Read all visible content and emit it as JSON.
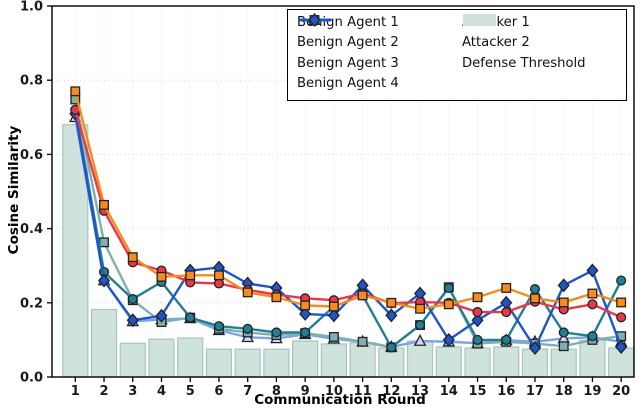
{
  "chart_data": {
    "type": "line+bar",
    "title": "",
    "xlabel": "Communication Round",
    "ylabel": "Cosine Similarity",
    "x": [
      1,
      2,
      3,
      4,
      5,
      6,
      7,
      8,
      9,
      10,
      11,
      12,
      13,
      14,
      15,
      16,
      17,
      18,
      19,
      20
    ],
    "ylim": [
      0.0,
      1.0
    ],
    "yticks": [
      "0.0",
      "0.2",
      "0.4",
      "0.6",
      "0.8",
      "1.0"
    ],
    "grid": true,
    "legend_position": "upper-center-inside, two columns, boxed",
    "colors": {
      "axis_border": "#000000",
      "grid": "#d9d9d9",
      "tick_label": "#1a1a1a",
      "bar_fill": "#cfe2dc",
      "bar_edge": "#a5c6bd"
    },
    "series": [
      {
        "name": "Defense Threshold",
        "type": "bar",
        "color": "#cfe2dc",
        "values": [
          0.68,
          0.182,
          0.091,
          0.102,
          0.105,
          0.075,
          0.075,
          0.075,
          0.097,
          0.089,
          0.092,
          0.078,
          0.097,
          0.081,
          0.078,
          0.081,
          0.075,
          0.075,
          0.099,
          0.078
        ]
      },
      {
        "name": "Benign Agent 3",
        "type": "line",
        "marker": "triangle",
        "color": "#7aa4e8",
        "marker_fill": "#cdd9f5",
        "values": [
          0.7,
          0.26,
          0.15,
          0.155,
          0.158,
          0.126,
          0.107,
          0.104,
          0.115,
          0.103,
          0.095,
          0.081,
          0.097,
          0.095,
          0.091,
          0.099,
          0.095,
          0.104,
          0.107,
          0.095
        ]
      },
      {
        "name": "Benign Agent 2",
        "type": "line",
        "marker": "square",
        "color": "#7fb0ad",
        "marker_fill": "#7fb0ad",
        "values": [
          0.748,
          0.363,
          0.207,
          0.148,
          0.16,
          0.13,
          0.12,
          0.113,
          0.118,
          0.108,
          0.095,
          0.08,
          0.14,
          0.242,
          0.09,
          0.095,
          0.09,
          0.083,
          0.1,
          0.11
        ]
      },
      {
        "name": "Benign Agent 1",
        "type": "line",
        "marker": "circle",
        "color": "#217f93",
        "marker_fill": "#217f93",
        "values": [
          0.72,
          0.283,
          0.21,
          0.256,
          0.16,
          0.137,
          0.13,
          0.12,
          0.12,
          0.19,
          0.22,
          0.08,
          0.14,
          0.24,
          0.1,
          0.1,
          0.237,
          0.12,
          0.11,
          0.26
        ]
      },
      {
        "name": "Benign Agent 4",
        "type": "line",
        "marker": "diamond",
        "color": "#1e56c9",
        "marker_fill": "#1e56c9",
        "values": [
          0.71,
          0.26,
          0.153,
          0.165,
          0.287,
          0.295,
          0.252,
          0.24,
          0.17,
          0.166,
          0.247,
          0.166,
          0.225,
          0.1,
          0.153,
          0.2,
          0.078,
          0.247,
          0.287,
          0.081
        ]
      },
      {
        "name": "Attacker 1",
        "type": "line",
        "marker": "circle",
        "color": "#e8394a",
        "marker_fill": "#e8394a",
        "values": [
          0.72,
          0.448,
          0.309,
          0.287,
          0.255,
          0.252,
          0.235,
          0.222,
          0.212,
          0.207,
          0.225,
          0.199,
          0.202,
          0.2,
          0.175,
          0.175,
          0.203,
          0.182,
          0.196,
          0.161
        ]
      },
      {
        "name": "Attacker 2",
        "type": "line",
        "marker": "square",
        "color": "#f78b1e",
        "marker_fill": "#f78b1e",
        "values": [
          0.77,
          0.464,
          0.323,
          0.27,
          0.274,
          0.274,
          0.228,
          0.215,
          0.193,
          0.19,
          0.22,
          0.2,
          0.184,
          0.196,
          0.215,
          0.24,
          0.212,
          0.201,
          0.225,
          0.201
        ]
      }
    ],
    "legend_order_col1": [
      "Benign Agent 1",
      "Benign Agent 2",
      "Benign Agent 3",
      "Benign Agent 4"
    ],
    "legend_order_col2": [
      "Attacker 1",
      "Attacker 2",
      "Defense Threshold"
    ]
  }
}
